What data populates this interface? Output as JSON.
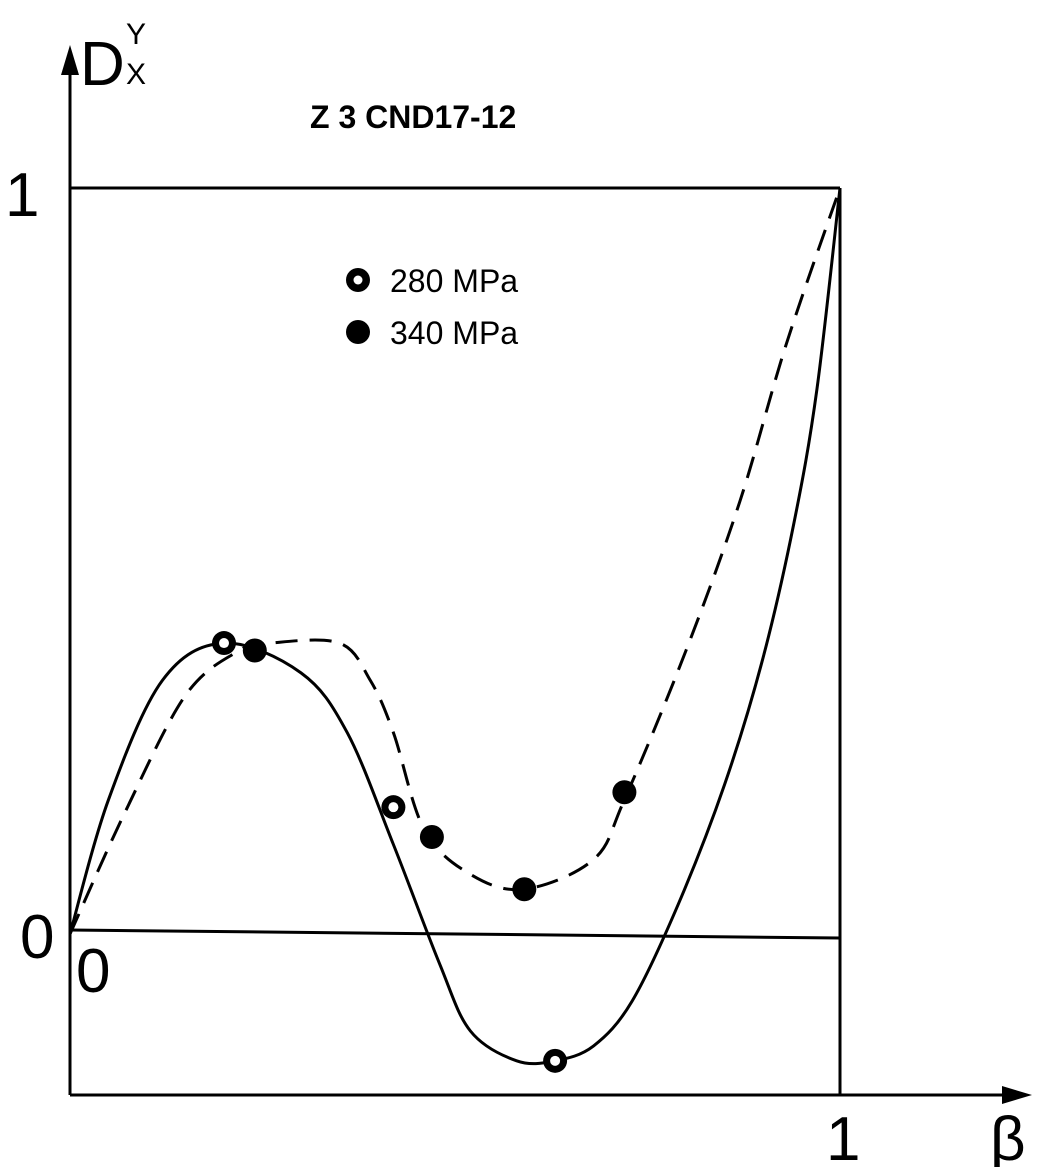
{
  "chart_data": {
    "type": "line",
    "title": "Z 3 CND17-12",
    "ylabel": {
      "main": "D",
      "sup": "Y",
      "sub": "X"
    },
    "xlabel": "β",
    "x_ticks": [
      "0",
      "1"
    ],
    "y_ticks": [
      "0",
      "1"
    ],
    "xlim": [
      0,
      1
    ],
    "ylim": [
      -0.2,
      1
    ],
    "legend_position": "top-center",
    "series": [
      {
        "name": "280 MPa",
        "line_style": "solid",
        "marker": "open-circle",
        "curve": [
          [
            0,
            0
          ],
          [
            0.05,
            0.18
          ],
          [
            0.12,
            0.34
          ],
          [
            0.2,
            0.39
          ],
          [
            0.3,
            0.35
          ],
          [
            0.36,
            0.27
          ],
          [
            0.42,
            0.12
          ],
          [
            0.48,
            -0.04
          ],
          [
            0.52,
            -0.13
          ],
          [
            0.58,
            -0.17
          ],
          [
            0.63,
            -0.17
          ],
          [
            0.68,
            -0.15
          ],
          [
            0.73,
            -0.09
          ],
          [
            0.79,
            0.04
          ],
          [
            0.85,
            0.2
          ],
          [
            0.9,
            0.37
          ],
          [
            0.94,
            0.55
          ],
          [
            0.97,
            0.73
          ],
          [
            1,
            1
          ]
        ],
        "points": [
          [
            0.2,
            0.39
          ],
          [
            0.42,
            0.17
          ],
          [
            0.63,
            -0.17
          ]
        ]
      },
      {
        "name": "340 MPa",
        "line_style": "dashed",
        "marker": "filled-circle",
        "curve": [
          [
            0,
            0
          ],
          [
            0.07,
            0.16
          ],
          [
            0.15,
            0.32
          ],
          [
            0.22,
            0.38
          ],
          [
            0.26,
            0.39
          ],
          [
            0.35,
            0.39
          ],
          [
            0.39,
            0.34
          ],
          [
            0.42,
            0.27
          ],
          [
            0.46,
            0.14
          ],
          [
            0.52,
            0.08
          ],
          [
            0.59,
            0.06
          ],
          [
            0.68,
            0.1
          ],
          [
            0.72,
            0.18
          ],
          [
            0.8,
            0.38
          ],
          [
            0.87,
            0.58
          ],
          [
            0.93,
            0.79
          ],
          [
            1,
            1
          ]
        ],
        "points": [
          [
            0.24,
            0.38
          ],
          [
            0.47,
            0.13
          ],
          [
            0.59,
            0.06
          ],
          [
            0.72,
            0.19
          ]
        ]
      }
    ]
  }
}
